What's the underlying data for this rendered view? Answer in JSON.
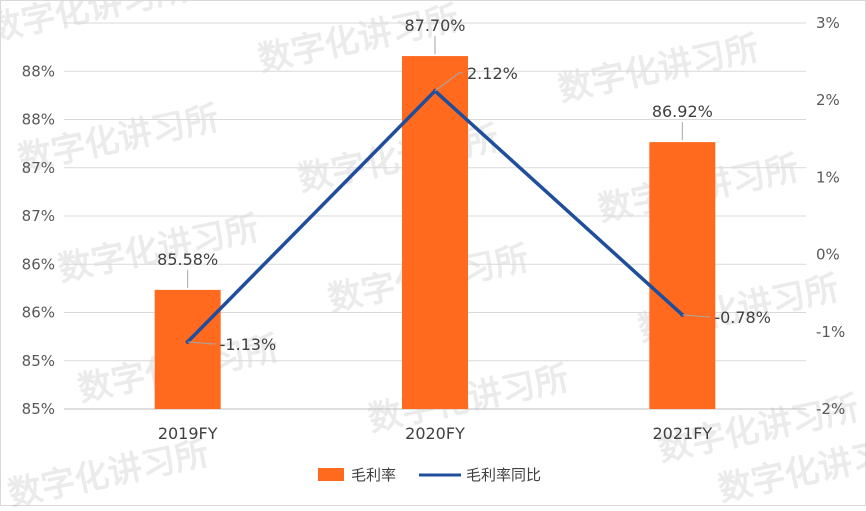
{
  "chart_data": {
    "type": "bar",
    "categories": [
      "2019FY",
      "2020FY",
      "2021FY"
    ],
    "series": [
      {
        "name": "毛利率",
        "kind": "bar",
        "axis": "left",
        "values": [
          85.58,
          87.7,
          86.92
        ],
        "labels": [
          "85.58%",
          "87.70%",
          "86.92%"
        ],
        "color": "#FF6A1F"
      },
      {
        "name": "毛利率同比",
        "kind": "line",
        "axis": "right",
        "values": [
          -1.13,
          2.12,
          -0.78
        ],
        "labels": [
          "-1.13%",
          "2.12%",
          "-0.78%"
        ],
        "color": "#1F4E9C"
      }
    ],
    "left_axis": {
      "min": 84.5,
      "max": 88.0,
      "ticks": [
        "85%",
        "85%",
        "86%",
        "86%",
        "87%",
        "87%",
        "88%",
        "88%"
      ]
    },
    "right_axis": {
      "min": -2,
      "max": 3,
      "ticks": [
        "-2%",
        "-1%",
        "0%",
        "1%",
        "2%",
        "3%"
      ]
    },
    "grid": true,
    "legend_position": "bottom",
    "watermark": "数字化讲习所"
  }
}
